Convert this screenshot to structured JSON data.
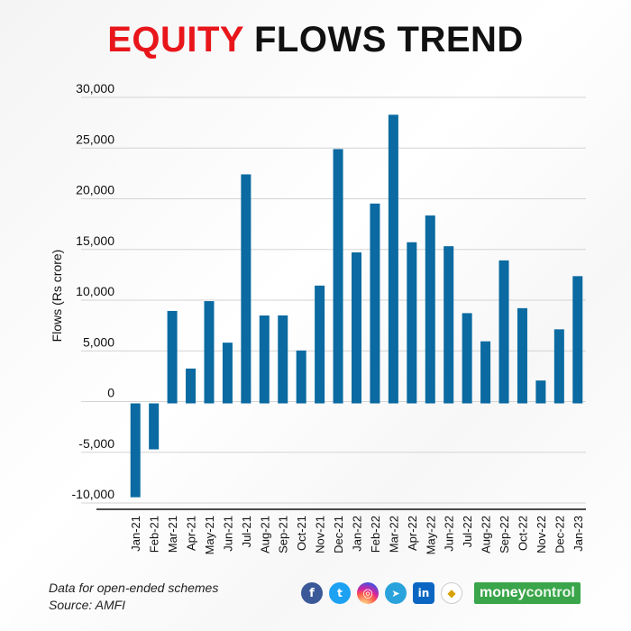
{
  "title": {
    "part1": "EQUITY",
    "part2": "FLOWS TREND"
  },
  "chart_data": {
    "type": "bar",
    "title": "EQUITY FLOWS TREND",
    "ylabel": "Flows (Rs crore)",
    "xlabel": "",
    "ylim": [
      -10000,
      30000
    ],
    "yticks": [
      30000,
      25000,
      20000,
      15000,
      10000,
      5000,
      0,
      -5000,
      -10000
    ],
    "ytick_labels": [
      "30,000",
      "25,000",
      "20,000",
      "15,000",
      "10,000",
      "5,000",
      "0",
      "-5,000",
      "-10,000"
    ],
    "categories": [
      "Jan-21",
      "Feb-21",
      "Mar-21",
      "Apr-21",
      "May-21",
      "Jun-21",
      "Jul-21",
      "Aug-21",
      "Sep-21",
      "Oct-21",
      "Nov-21",
      "Dec-21",
      "Jan-22",
      "Feb-22",
      "Mar-22",
      "Apr-22",
      "May-22",
      "Jun-22",
      "Jul-22",
      "Aug-22",
      "Sep-22",
      "Oct-22",
      "Nov-22",
      "Dec-22",
      "Jan-23"
    ],
    "values": [
      -9253,
      -4534,
      9115,
      3437,
      10083,
      5988,
      22583,
      8666,
      8677,
      5215,
      11615,
      25077,
      14888,
      19705,
      28463,
      15890,
      18529,
      15498,
      8898,
      6120,
      14100,
      9390,
      2258,
      7303,
      12546
    ],
    "bar_color": "#0a6aa1",
    "grid": true
  },
  "footer": {
    "note": "Data for open-ended schemes",
    "source": "Source: AMFI"
  },
  "social_icons": [
    "facebook-icon",
    "twitter-icon",
    "instagram-icon",
    "telegram-icon",
    "linkedin-icon",
    "koo-icon"
  ],
  "brand": {
    "part1": "money",
    "part2": "control"
  }
}
